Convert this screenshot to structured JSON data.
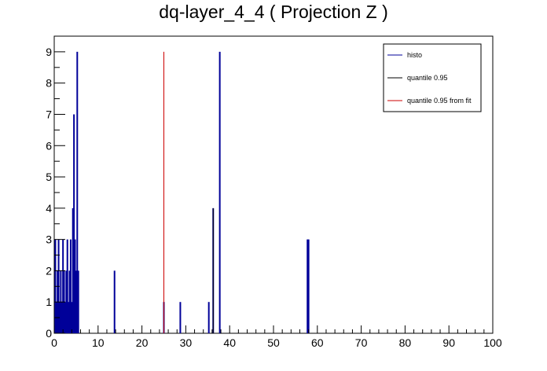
{
  "chart_data": {
    "type": "bar",
    "title": "dq-layer_4_4 ( Projection Z )",
    "xlabel": "",
    "ylabel": "",
    "xlim": [
      0,
      100
    ],
    "ylim": [
      0,
      9.5
    ],
    "xticks": [
      "0",
      "10",
      "20",
      "30",
      "40",
      "50",
      "60",
      "70",
      "80",
      "90",
      "100"
    ],
    "yticks": [
      "0",
      "1",
      "2",
      "3",
      "4",
      "5",
      "6",
      "7",
      "8",
      "9"
    ],
    "grid": false,
    "legend_position": "top-right",
    "series": [
      {
        "name": "histo",
        "color": "#000099",
        "style": "bars",
        "x": [
          0.25,
          0.5,
          0.75,
          1.0,
          1.25,
          1.5,
          1.75,
          2.0,
          2.25,
          2.5,
          2.75,
          3.0,
          3.25,
          3.5,
          3.75,
          4.0,
          4.25,
          4.5,
          4.75,
          5.0,
          5.25,
          5.5,
          13.75,
          25.0,
          28.75,
          35.25,
          36.25,
          37.75,
          57.75,
          58.0
        ],
        "values": [
          3,
          1,
          2,
          3,
          1,
          2,
          1,
          3,
          2,
          1,
          2,
          3,
          1,
          2,
          3,
          1,
          4,
          7,
          3,
          2,
          9,
          2,
          2,
          1,
          1,
          1,
          4,
          9,
          3,
          3
        ]
      },
      {
        "name": "quantile 0.95",
        "color": "#000000",
        "style": "line",
        "x": [
          36.25
        ],
        "values": [
          4
        ]
      },
      {
        "name": "quantile 0.95 from fit",
        "color": "#cc0000",
        "style": "line",
        "x": [
          25.0
        ],
        "values": [
          9
        ]
      }
    ]
  }
}
